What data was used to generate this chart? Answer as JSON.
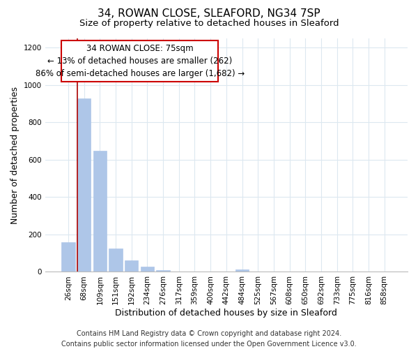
{
  "title": "34, ROWAN CLOSE, SLEAFORD, NG34 7SP",
  "subtitle": "Size of property relative to detached houses in Sleaford",
  "xlabel": "Distribution of detached houses by size in Sleaford",
  "ylabel": "Number of detached properties",
  "bar_labels": [
    "26sqm",
    "68sqm",
    "109sqm",
    "151sqm",
    "192sqm",
    "234sqm",
    "276sqm",
    "317sqm",
    "359sqm",
    "400sqm",
    "442sqm",
    "484sqm",
    "525sqm",
    "567sqm",
    "608sqm",
    "650sqm",
    "692sqm",
    "733sqm",
    "775sqm",
    "816sqm",
    "858sqm"
  ],
  "bar_values": [
    160,
    930,
    650,
    125,
    60,
    27,
    10,
    0,
    0,
    0,
    0,
    13,
    0,
    0,
    0,
    0,
    0,
    0,
    0,
    0,
    0
  ],
  "bar_color": "#aec6e8",
  "bar_edge_color": "#aec6e8",
  "annotation_line1": "34 ROWAN CLOSE: 75sqm",
  "annotation_line2": "← 13% of detached houses are smaller (262)",
  "annotation_line3": "86% of semi-detached houses are larger (1,682) →",
  "ylim": [
    0,
    1250
  ],
  "yticks": [
    0,
    200,
    400,
    600,
    800,
    1000,
    1200
  ],
  "footer_line1": "Contains HM Land Registry data © Crown copyright and database right 2024.",
  "footer_line2": "Contains public sector information licensed under the Open Government Licence v3.0.",
  "background_color": "#ffffff",
  "grid_color": "#dce8f0",
  "red_line_color": "#aa0000",
  "annotation_box_edge_color": "#cc0000",
  "title_fontsize": 11,
  "subtitle_fontsize": 9.5,
  "axis_label_fontsize": 9,
  "tick_fontsize": 7.5,
  "annotation_fontsize": 8.5,
  "footer_fontsize": 7
}
